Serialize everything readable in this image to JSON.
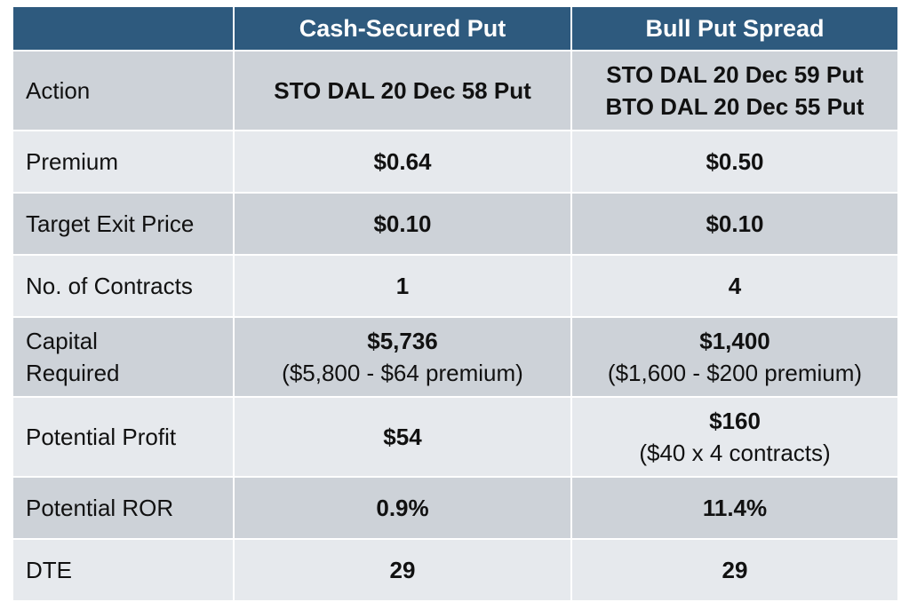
{
  "header": {
    "col0": "",
    "col1": "Cash-Secured Put",
    "col2": "Bull Put Spread"
  },
  "rows": [
    {
      "label": "Action",
      "csp": "STO DAL 20 Dec 58 Put",
      "bps_line1": "STO DAL 20 Dec 59 Put",
      "bps_line2": "BTO DAL 20 Dec 55 Put"
    },
    {
      "label": "Premium",
      "csp": "$0.64",
      "bps": "$0.50"
    },
    {
      "label": "Target Exit Price",
      "csp": "$0.10",
      "bps": "$0.10"
    },
    {
      "label": "No. of Contracts",
      "csp": "1",
      "bps": "4"
    },
    {
      "label_line1": "Capital",
      "label_line2": "Required",
      "csp": "$5,736",
      "csp_note": "($5,800 - $64 premium)",
      "bps": "$1,400",
      "bps_note": "($1,600 - $200 premium)"
    },
    {
      "label": "Potential Profit",
      "csp": "$54",
      "bps": "$160",
      "bps_note": "($40 x 4 contracts)"
    },
    {
      "label": "Potential ROR",
      "csp": "0.9%",
      "bps": "11.4%"
    },
    {
      "label": "DTE",
      "csp": "29",
      "bps": "29"
    }
  ],
  "colors": {
    "header_bg": "#2e5a7e",
    "row_dark": "#cdd2d8",
    "row_light": "#e6e9ed"
  }
}
